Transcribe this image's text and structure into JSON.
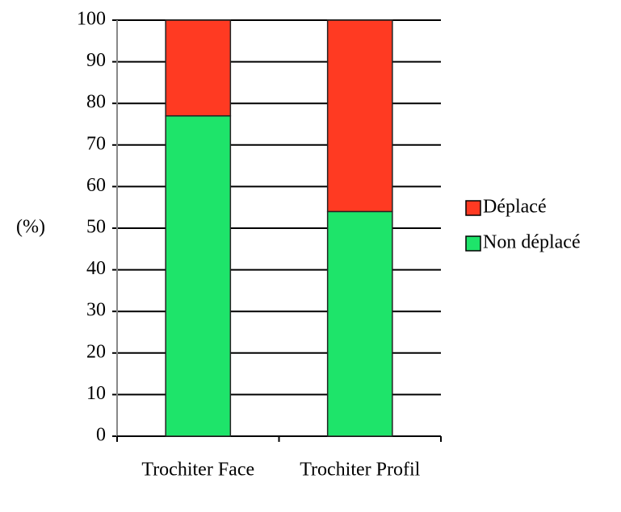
{
  "chart_data": {
    "type": "stacked_bar",
    "y_label": "(%)",
    "categories": [
      "Trochiter Face",
      "Trochiter Profil"
    ],
    "series": [
      {
        "name": "Non déplacé",
        "color": "#1ee46a",
        "values": [
          77,
          54
        ]
      },
      {
        "name": "Déplacé",
        "color": "#ff3a22",
        "values": [
          23,
          46
        ]
      }
    ],
    "ylim": [
      0,
      100
    ],
    "yticks": [
      0,
      10,
      20,
      30,
      40,
      50,
      60,
      70,
      80,
      90,
      100
    ],
    "grid": true,
    "legend": "right"
  }
}
